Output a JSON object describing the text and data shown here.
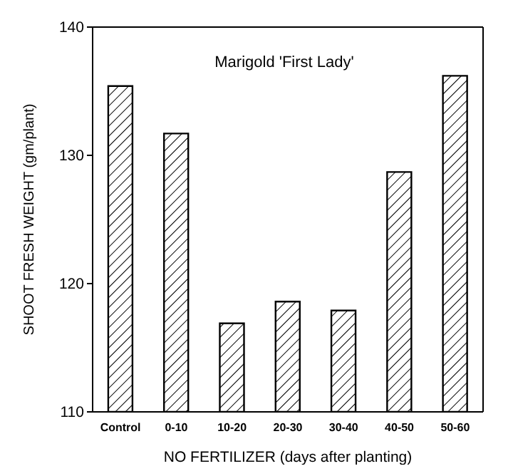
{
  "chart_data": {
    "type": "bar",
    "title": "Marigold 'First Lady'",
    "xlabel": "NO FERTILIZER (days after planting)",
    "ylabel": "SHOOT FRESH WEIGHT (gm/plant)",
    "categories": [
      "Control",
      "0-10",
      "10-20",
      "20-30",
      "30-40",
      "40-50",
      "50-60"
    ],
    "values": [
      135.4,
      131.7,
      116.9,
      118.6,
      117.9,
      128.7,
      136.2
    ],
    "color": "#000000",
    "ylim": [
      110,
      140
    ],
    "yticks": [
      110,
      120,
      130,
      140
    ],
    "grid": false
  }
}
